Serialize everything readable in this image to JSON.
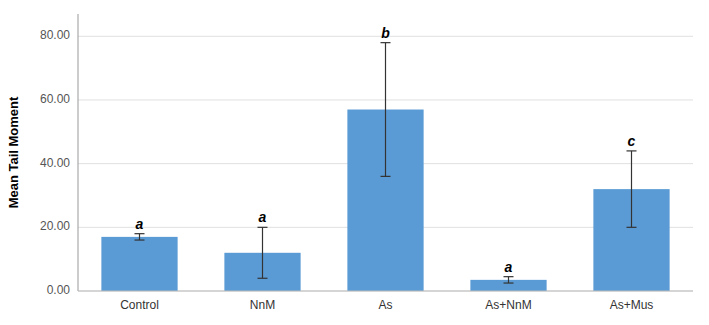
{
  "chart_data": {
    "type": "bar",
    "y_label": "Mean Tail Moment",
    "categories": [
      "Control",
      "NnM",
      "As",
      "As+NnM",
      "As+Mus"
    ],
    "values": [
      17.0,
      12.0,
      57.0,
      3.5,
      32.0
    ],
    "errors": [
      1.0,
      8.0,
      21.0,
      1.0,
      12.0
    ],
    "letters": [
      "a",
      "a",
      "b",
      "a",
      "c"
    ],
    "color": "#5b9bd5",
    "ylim": [
      0,
      87
    ],
    "yticks": [
      {
        "value": 0,
        "label": "0.00"
      },
      {
        "value": 20,
        "label": "20.00"
      },
      {
        "value": 40,
        "label": "40.00"
      },
      {
        "value": 60,
        "label": "60.00"
      },
      {
        "value": 80,
        "label": "80.00"
      }
    ],
    "grid": true
  }
}
